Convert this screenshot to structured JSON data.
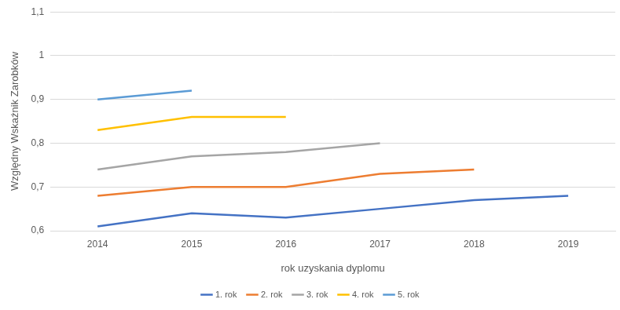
{
  "chart_data": {
    "type": "line",
    "x_label": "rok uzyskania dyplomu",
    "y_label": "Względny Wskaźnik Zarobków",
    "categories": [
      "2014",
      "2015",
      "2016",
      "2017",
      "2018",
      "2019"
    ],
    "series": [
      {
        "name": "1. rok",
        "color": "#4472c4",
        "values": [
          0.61,
          0.64,
          0.63,
          0.65,
          0.67,
          0.68
        ]
      },
      {
        "name": "2. rok",
        "color": "#ed7d31",
        "values": [
          0.68,
          0.7,
          0.7,
          0.73,
          0.74,
          null
        ]
      },
      {
        "name": "3. rok",
        "color": "#a5a5a5",
        "values": [
          0.74,
          0.77,
          0.78,
          0.8,
          null,
          null
        ]
      },
      {
        "name": "4. rok",
        "color": "#ffc000",
        "values": [
          0.83,
          0.86,
          0.86,
          null,
          null,
          null
        ]
      },
      {
        "name": "5. rok",
        "color": "#5b9bd5",
        "values": [
          0.9,
          0.92,
          null,
          null,
          null,
          null
        ]
      }
    ],
    "ylim": [
      0.6,
      1.1
    ],
    "yticks": [
      {
        "value": 0.6,
        "label": "0,6"
      },
      {
        "value": 0.7,
        "label": "0,7"
      },
      {
        "value": 0.8,
        "label": "0,8"
      },
      {
        "value": 0.9,
        "label": "0,9"
      },
      1,
      {
        "value": 1.1,
        "label": "1,1"
      }
    ],
    "grid": true,
    "legend": "bottom"
  }
}
